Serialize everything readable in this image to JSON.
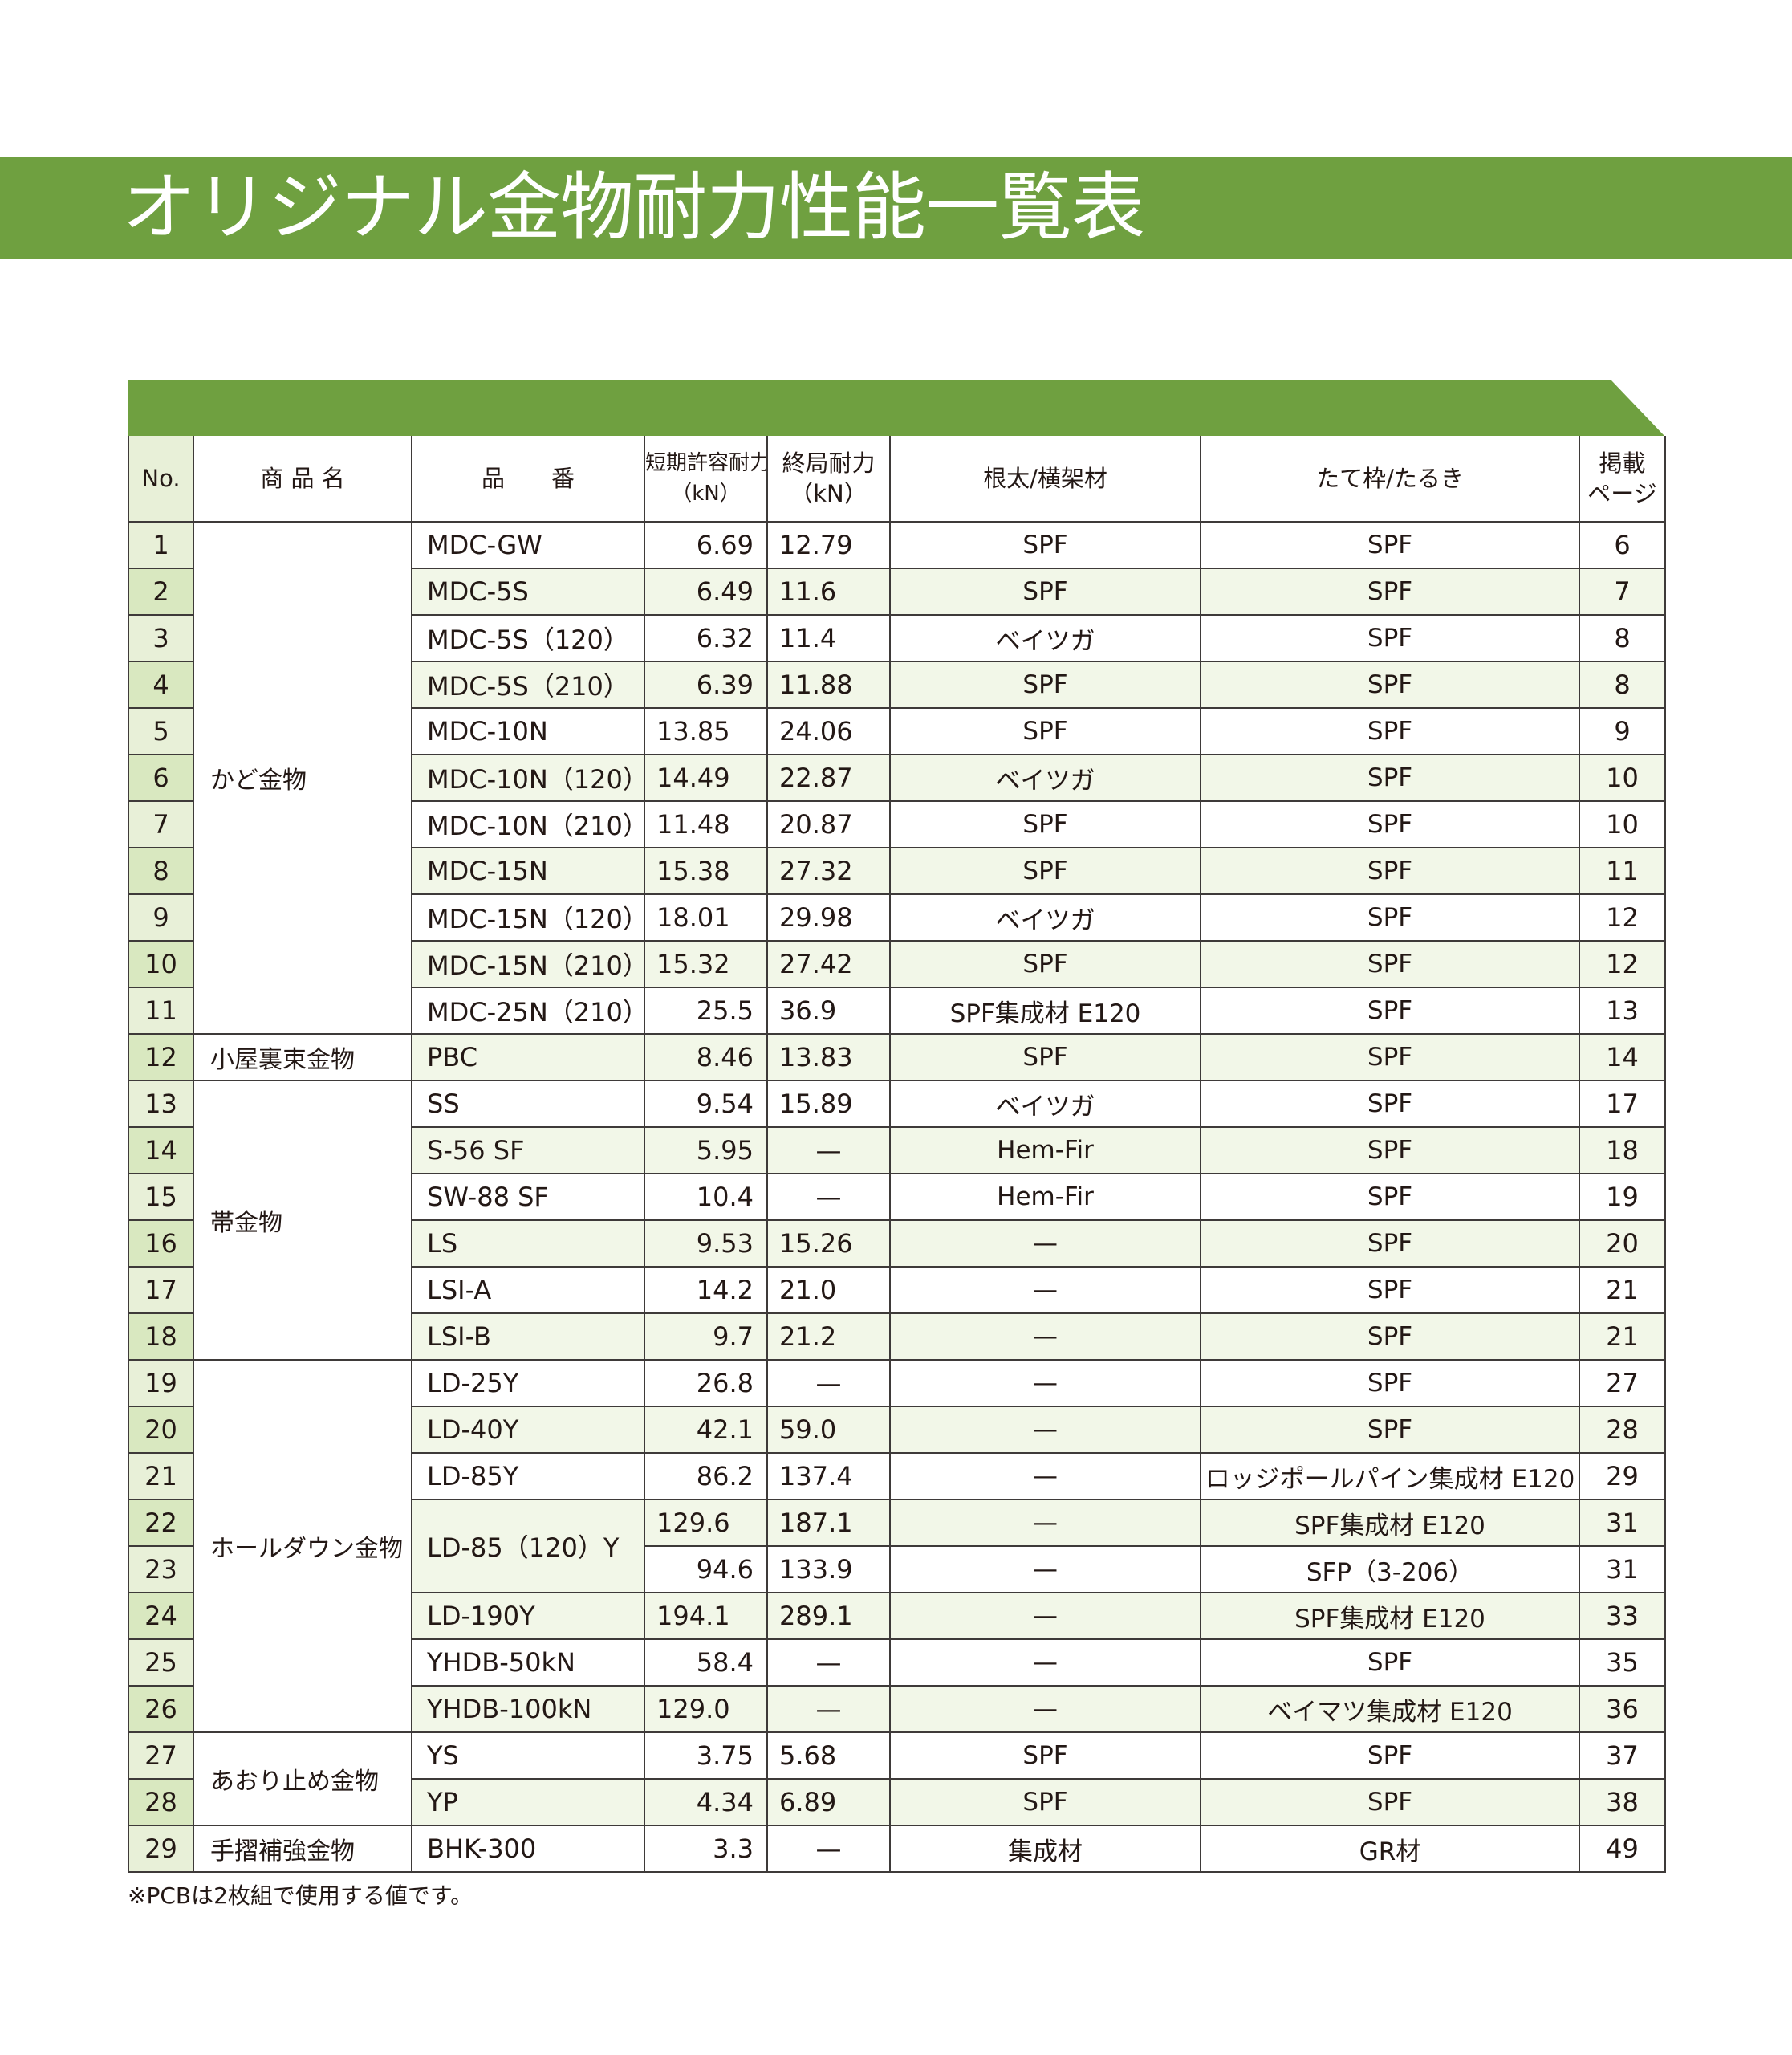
{
  "title": "オリジナル金物耐力性能一覧表",
  "header": {
    "no": "No.",
    "product_name": "商 品 名",
    "code": "品　　番",
    "short_term_1": "短期許容耐力",
    "short_term_2": "（kN）",
    "ultimate_1": "終局耐力",
    "ultimate_2": "（kN）",
    "beam": "根太/横架材",
    "frame": "たて枠/たるき",
    "page_1": "掲載",
    "page_2": "ページ"
  },
  "groups": [
    {
      "name": "かど金物",
      "rows": [
        {
          "no": "1",
          "code": "MDC-GW",
          "short": "6.69",
          "ult": "12.79",
          "beam": "SPF",
          "frame": "SPF",
          "page": "6"
        },
        {
          "no": "2",
          "code": "MDC-5S",
          "short": "6.49",
          "ult": "11.6",
          "beam": "SPF",
          "frame": "SPF",
          "page": "7"
        },
        {
          "no": "3",
          "code": "MDC-5S（120）",
          "short": "6.32",
          "ult": "11.4",
          "beam": "ベイツガ",
          "frame": "SPF",
          "page": "8"
        },
        {
          "no": "4",
          "code": "MDC-5S（210）",
          "short": "6.39",
          "ult": "11.88",
          "beam": "SPF",
          "frame": "SPF",
          "page": "8"
        },
        {
          "no": "5",
          "code": "MDC-10N",
          "short": "13.85",
          "ult": "24.06",
          "beam": "SPF",
          "frame": "SPF",
          "page": "9"
        },
        {
          "no": "6",
          "code": "MDC-10N（120）",
          "short": "14.49",
          "ult": "22.87",
          "beam": "ベイツガ",
          "frame": "SPF",
          "page": "10"
        },
        {
          "no": "7",
          "code": "MDC-10N（210）",
          "short": "11.48",
          "ult": "20.87",
          "beam": "SPF",
          "frame": "SPF",
          "page": "10"
        },
        {
          "no": "8",
          "code": "MDC-15N",
          "short": "15.38",
          "ult": "27.32",
          "beam": "SPF",
          "frame": "SPF",
          "page": "11"
        },
        {
          "no": "9",
          "code": "MDC-15N（120）",
          "short": "18.01",
          "ult": "29.98",
          "beam": "ベイツガ",
          "frame": "SPF",
          "page": "12"
        },
        {
          "no": "10",
          "code": "MDC-15N（210）",
          "short": "15.32",
          "ult": "27.42",
          "beam": "SPF",
          "frame": "SPF",
          "page": "12"
        },
        {
          "no": "11",
          "code": "MDC-25N（210）",
          "short": "25.5",
          "ult": "36.9",
          "beam": "SPF集成材 E120",
          "frame": "SPF",
          "page": "13"
        }
      ]
    },
    {
      "name": "小屋裏束金物",
      "rows": [
        {
          "no": "12",
          "code": "PBC",
          "short": "8.46",
          "ult": "13.83",
          "beam": "SPF",
          "frame": "SPF",
          "page": "14"
        }
      ]
    },
    {
      "name": "帯金物",
      "rows": [
        {
          "no": "13",
          "code": "SS",
          "short": "9.54",
          "ult": "15.89",
          "beam": "ベイツガ",
          "frame": "SPF",
          "page": "17"
        },
        {
          "no": "14",
          "code": "S-56 SF",
          "short": "5.95",
          "ult": "—",
          "beam": "Hem-Fir",
          "frame": "SPF",
          "page": "18"
        },
        {
          "no": "15",
          "code": "SW-88 SF",
          "short": "10.4",
          "ult": "—",
          "beam": "Hem-Fir",
          "frame": "SPF",
          "page": "19"
        },
        {
          "no": "16",
          "code": "LS",
          "short": "9.53",
          "ult": "15.26",
          "beam": "—",
          "frame": "SPF",
          "page": "20"
        },
        {
          "no": "17",
          "code": "LSI-A",
          "short": "14.2",
          "ult": "21.0",
          "beam": "—",
          "frame": "SPF",
          "page": "21"
        },
        {
          "no": "18",
          "code": "LSI-B",
          "short": "9.7",
          "ult": "21.2",
          "beam": "—",
          "frame": "SPF",
          "page": "21"
        }
      ]
    },
    {
      "name": "ホールダウン金物",
      "rows": [
        {
          "no": "19",
          "code": "LD-25Y",
          "short": "26.8",
          "ult": "—",
          "beam": "—",
          "frame": "SPF",
          "page": "27"
        },
        {
          "no": "20",
          "code": "LD-40Y",
          "short": "42.1",
          "ult": "59.0",
          "beam": "—",
          "frame": "SPF",
          "page": "28"
        },
        {
          "no": "21",
          "code": "LD-85Y",
          "short": "86.2",
          "ult": "137.4",
          "beam": "—",
          "frame": "ロッジポールパイン集成材 E120",
          "page": "29"
        },
        {
          "no": "22",
          "code": "LD-85（120）Y",
          "short": "129.6",
          "ult": "187.1",
          "beam": "—",
          "frame": "SPF集成材 E120",
          "page": "31"
        },
        {
          "no": "23",
          "code": "",
          "short": "94.6",
          "ult": "133.9",
          "beam": "—",
          "frame": "SFP（3-206）",
          "page": "31"
        },
        {
          "no": "24",
          "code": "LD-190Y",
          "short": "194.1",
          "ult": "289.1",
          "beam": "—",
          "frame": "SPF集成材 E120",
          "page": "33"
        },
        {
          "no": "25",
          "code": "YHDB-50kN",
          "short": "58.4",
          "ult": "—",
          "beam": "—",
          "frame": "SPF",
          "page": "35"
        },
        {
          "no": "26",
          "code": "YHDB-100kN",
          "short": "129.0",
          "ult": "—",
          "beam": "—",
          "frame": "ベイマツ集成材 E120",
          "page": "36"
        }
      ]
    },
    {
      "name": "あおり止め金物",
      "rows": [
        {
          "no": "27",
          "code": "YS",
          "short": "3.75",
          "ult": "5.68",
          "beam": "SPF",
          "frame": "SPF",
          "page": "37"
        },
        {
          "no": "28",
          "code": "YP",
          "short": "4.34",
          "ult": "6.89",
          "beam": "SPF",
          "frame": "SPF",
          "page": "38"
        }
      ]
    },
    {
      "name": "手摺補強金物",
      "rows": [
        {
          "no": "29",
          "code": "BHK-300",
          "short": "3.3",
          "ult": "—",
          "beam": "集成材",
          "frame": "GR材",
          "page": "49"
        }
      ]
    }
  ],
  "footnote": "※PCBは2枚組で使用する値です。"
}
